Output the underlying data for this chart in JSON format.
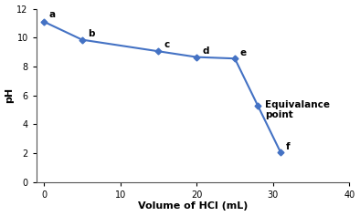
{
  "x": [
    0,
    5,
    15,
    20,
    25,
    28,
    31
  ],
  "y": [
    11.1,
    9.85,
    9.05,
    8.65,
    8.55,
    5.3,
    2.05
  ],
  "point_labels": [
    "a",
    "b",
    "c",
    "d",
    "e",
    "f"
  ],
  "point_label_indices": [
    0,
    1,
    2,
    3,
    4,
    6
  ],
  "xlabel": "Volume of HCl (mL)",
  "ylabel": "pH",
  "xlim": [
    -1,
    40
  ],
  "ylim": [
    0,
    12
  ],
  "xticks": [
    0,
    10,
    20,
    30,
    40
  ],
  "yticks": [
    0,
    2,
    4,
    6,
    8,
    10,
    12
  ],
  "line_color": "#4472C4",
  "marker": "D",
  "marker_size": 3.5,
  "line_width": 1.5,
  "bg_color": "#ffffff",
  "plot_bg_color": "#ffffff",
  "label_fontsize": 7.5,
  "axis_label_fontsize": 8,
  "tick_fontsize": 7,
  "equiv_text": "Equivalance\npoint",
  "equiv_x": 29,
  "equiv_y": 5.0,
  "equiv_fontsize": 7.5
}
